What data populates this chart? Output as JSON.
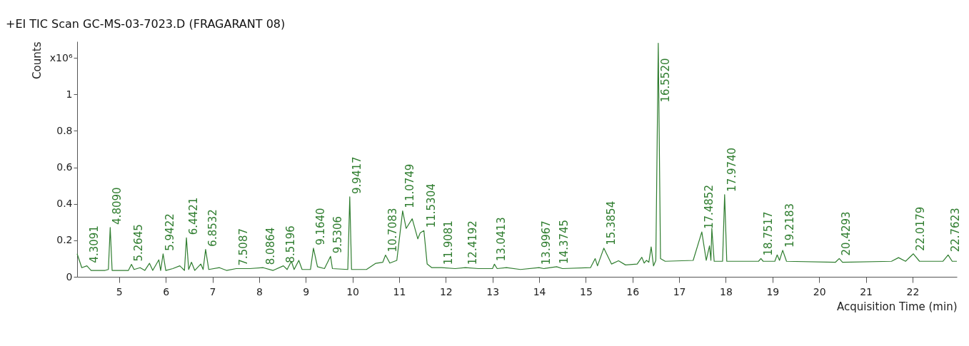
{
  "chart_data": {
    "type": "line",
    "title": "+EI TIC Scan GC-MS-03-7023.D  (FRAGARANT  08)",
    "xlabel": "Acquisition Time (min)",
    "ylabel": "Counts",
    "xlim": [
      4.1,
      22.95
    ],
    "xticks": [
      5,
      6,
      7,
      8,
      9,
      10,
      11,
      12,
      13,
      14,
      15,
      16,
      17,
      18,
      19,
      20,
      21,
      22
    ],
    "ylim": [
      0,
      1.29
    ],
    "yticks": [
      0,
      0.2,
      0.4,
      0.6,
      0.8,
      1,
      {
        "value": 1.2,
        "label": "x10⁶"
      }
    ],
    "grid": false,
    "series": [
      {
        "color": "#2f7d2f",
        "x": [
          4.1,
          4.2,
          4.3091,
          4.4,
          4.7,
          4.77,
          4.809,
          4.85,
          5.2,
          5.2645,
          5.32,
          5.45,
          5.55,
          5.65,
          5.72,
          5.85,
          5.89,
          5.9422,
          6.0,
          6.15,
          6.3,
          6.4,
          6.4421,
          6.49,
          6.55,
          6.62,
          6.75,
          6.8,
          6.8532,
          6.92,
          7.15,
          7.3,
          7.5087,
          7.8,
          8.0864,
          8.3,
          8.5196,
          8.6,
          8.69,
          8.75,
          8.85,
          8.92,
          9.1,
          9.164,
          9.25,
          9.4,
          9.5306,
          9.57,
          9.9,
          9.9417,
          9.98,
          10.3,
          10.5,
          10.65,
          10.7083,
          10.8,
          10.95,
          11.0749,
          11.15,
          11.28,
          11.4,
          11.45,
          11.5304,
          11.6,
          11.7,
          11.9081,
          12.2,
          12.4192,
          12.7,
          13.0,
          13.0413,
          13.1,
          13.3,
          13.6,
          13.9967,
          14.1,
          14.3745,
          14.5,
          15.1,
          15.2,
          15.25,
          15.3854,
          15.55,
          15.7,
          15.85,
          16.1,
          16.2,
          16.25,
          16.3,
          16.35,
          16.4,
          16.45,
          16.5,
          16.552,
          16.6,
          16.7,
          17.3,
          17.4852,
          17.58,
          17.65,
          17.68,
          17.7,
          17.75,
          17.93,
          17.974,
          18.02,
          18.7,
          18.7517,
          18.8,
          19.05,
          19.1,
          19.15,
          19.2183,
          19.3,
          20.35,
          20.4293,
          20.5,
          21.55,
          21.7,
          21.85,
          22.0179,
          22.15,
          22.65,
          22.7623,
          22.85,
          22.95
        ],
        "values": [
          0.126,
          0.05,
          0.06,
          0.035,
          0.035,
          0.04,
          0.27,
          0.035,
          0.035,
          0.068,
          0.04,
          0.05,
          0.035,
          0.074,
          0.035,
          0.093,
          0.035,
          0.126,
          0.035,
          0.045,
          0.06,
          0.035,
          0.214,
          0.04,
          0.08,
          0.035,
          0.07,
          0.04,
          0.15,
          0.04,
          0.05,
          0.035,
          0.045,
          0.045,
          0.05,
          0.035,
          0.06,
          0.04,
          0.085,
          0.04,
          0.09,
          0.04,
          0.04,
          0.157,
          0.055,
          0.045,
          0.112,
          0.045,
          0.04,
          0.438,
          0.04,
          0.04,
          0.074,
          0.08,
          0.119,
          0.075,
          0.09,
          0.361,
          0.265,
          0.318,
          0.208,
          0.24,
          0.253,
          0.07,
          0.05,
          0.05,
          0.045,
          0.05,
          0.045,
          0.045,
          0.069,
          0.045,
          0.05,
          0.04,
          0.05,
          0.045,
          0.055,
          0.045,
          0.05,
          0.1,
          0.06,
          0.157,
          0.07,
          0.088,
          0.065,
          0.07,
          0.107,
          0.075,
          0.09,
          0.08,
          0.164,
          0.06,
          0.09,
          1.28,
          0.1,
          0.085,
          0.09,
          0.246,
          0.09,
          0.17,
          0.09,
          0.265,
          0.085,
          0.085,
          0.45,
          0.085,
          0.085,
          0.1,
          0.085,
          0.085,
          0.12,
          0.09,
          0.145,
          0.085,
          0.08,
          0.1,
          0.08,
          0.085,
          0.105,
          0.085,
          0.126,
          0.085,
          0.085,
          0.12,
          0.085,
          0.085
        ]
      }
    ],
    "annotations": [
      {
        "text": "4.3091",
        "x": 4.3091,
        "y": 0.06
      },
      {
        "text": "4.8090",
        "x": 4.809,
        "y": 0.27
      },
      {
        "text": "5.2645",
        "x": 5.2645,
        "y": 0.068
      },
      {
        "text": "5.9422",
        "x": 5.9422,
        "y": 0.126
      },
      {
        "text": "6.4421",
        "x": 6.4421,
        "y": 0.214
      },
      {
        "text": "6.8532",
        "x": 6.8532,
        "y": 0.15
      },
      {
        "text": "7.5087",
        "x": 7.5087,
        "y": 0.045
      },
      {
        "text": "8.0864",
        "x": 8.0864,
        "y": 0.05
      },
      {
        "text": "8.5196",
        "x": 8.5196,
        "y": 0.06
      },
      {
        "text": "9.1640",
        "x": 9.164,
        "y": 0.157
      },
      {
        "text": "9.5306",
        "x": 9.5306,
        "y": 0.112
      },
      {
        "text": "9.9417",
        "x": 9.9417,
        "y": 0.438
      },
      {
        "text": "10.7083",
        "x": 10.7083,
        "y": 0.119
      },
      {
        "text": "11.0749",
        "x": 11.0749,
        "y": 0.361
      },
      {
        "text": "11.5304",
        "x": 11.5304,
        "y": 0.253
      },
      {
        "text": "11.9081",
        "x": 11.9081,
        "y": 0.05
      },
      {
        "text": "12.4192",
        "x": 12.4192,
        "y": 0.05
      },
      {
        "text": "13.0413",
        "x": 13.0413,
        "y": 0.069
      },
      {
        "text": "13.9967",
        "x": 13.9967,
        "y": 0.05
      },
      {
        "text": "14.3745",
        "x": 14.3745,
        "y": 0.055
      },
      {
        "text": "15.3854",
        "x": 15.3854,
        "y": 0.157
      },
      {
        "text": "16.5520",
        "x": 16.552,
        "y": 0.94
      },
      {
        "text": "17.4852",
        "x": 17.4852,
        "y": 0.246
      },
      {
        "text": "17.9740",
        "x": 17.974,
        "y": 0.45
      },
      {
        "text": "18.7517",
        "x": 18.7517,
        "y": 0.1
      },
      {
        "text": "19.2183",
        "x": 19.2183,
        "y": 0.145
      },
      {
        "text": "20.4293",
        "x": 20.4293,
        "y": 0.1
      },
      {
        "text": "22.0179",
        "x": 22.0179,
        "y": 0.126
      },
      {
        "text": "22.7623",
        "x": 22.7623,
        "y": 0.12
      }
    ]
  }
}
